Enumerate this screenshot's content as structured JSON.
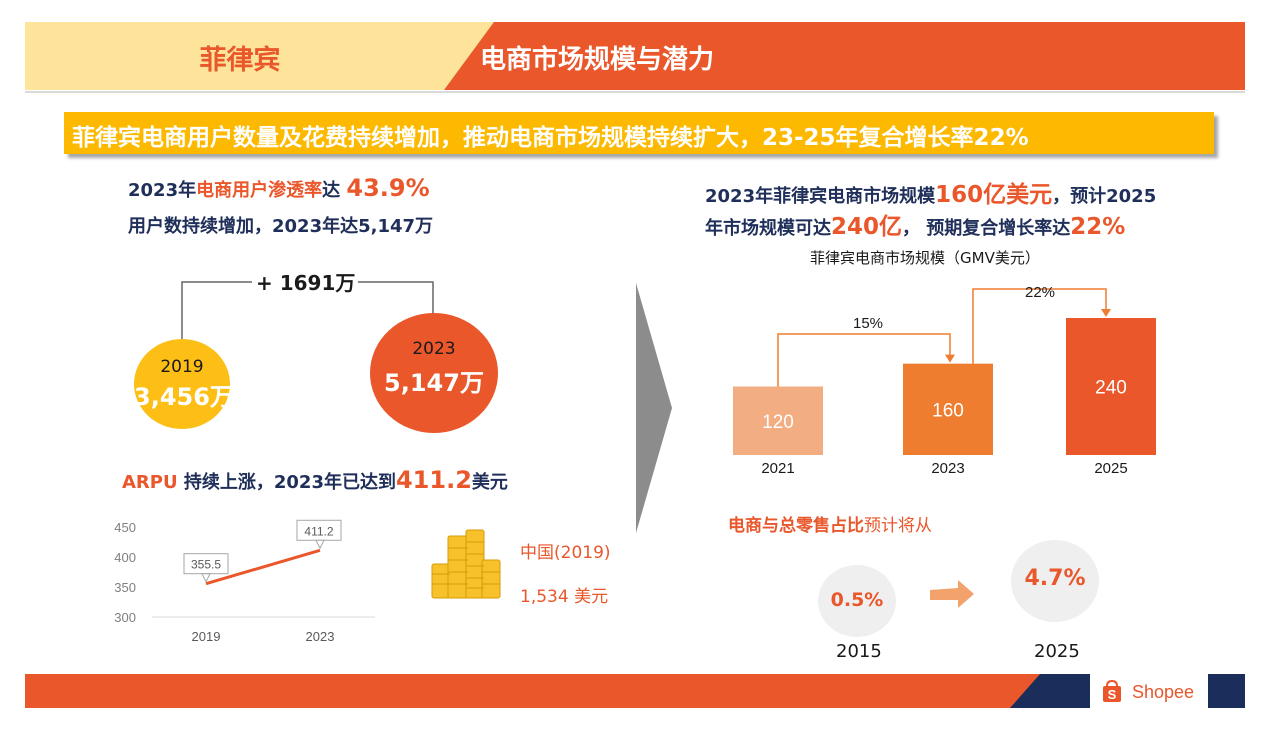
{
  "header": {
    "country": "菲律宾",
    "section_title": "电商市场规模与潜力"
  },
  "banner": {
    "text": "菲律宾电商用户数量及花费持续增加，推动电商市场规模持续扩大，23-25年复合增长率22%"
  },
  "users": {
    "line1_a": "2023年",
    "line1_b": "电商用户渗透率",
    "line1_c": "达 ",
    "line1_value": "43.9%",
    "line2": "用户数持续增加，2023年达5,147万",
    "increase_label": "+ 1691万",
    "circle_2019_year": "2019",
    "circle_2019_value": "3,456万",
    "circle_2023_year": "2023",
    "circle_2023_value": "5,147万"
  },
  "arpu": {
    "label_a": "ARPU",
    "label_b": " 持续上涨，2023年已达到",
    "label_value": "411.2",
    "label_unit": "美元",
    "compare_label": "中国(2019)",
    "compare_value": "1,534 美元"
  },
  "market": {
    "line1_a": "2023年菲律宾电商市场规模",
    "line1_value": "160亿美元",
    "line1_b": "，预计2025",
    "line2_a": "年市场规模可达",
    "line2_value": "240亿",
    "line2_b": "，  预期复合增长率达",
    "line2_value2": "22%",
    "chart_title": "菲律宾电商市场规模（GMV美元）"
  },
  "retail": {
    "label_a": "电商与总零售占比",
    "label_b": "预计将从",
    "from_value": "0.5%",
    "from_year": "2015",
    "to_value": "4.7%",
    "to_year": "2025"
  },
  "footer": {
    "brand": "Shopee"
  },
  "colors": {
    "accent": "#e9572b",
    "yellow": "#fcb900",
    "navy": "#1f2f5a"
  },
  "chart_data": [
    {
      "type": "line",
      "title": "",
      "x": [
        "2019",
        "2023"
      ],
      "series": [
        {
          "values": [
            355.5,
            411.2
          ]
        }
      ],
      "ylim": [
        300,
        450
      ],
      "yticks": [
        300,
        350,
        400,
        450
      ],
      "data_labels": [
        "355.5",
        "411.2"
      ]
    },
    {
      "type": "bar",
      "title": "菲律宾电商市场规模（GMV美元）",
      "categories": [
        "2021",
        "2023",
        "2025"
      ],
      "values": [
        120,
        160,
        240
      ],
      "bar_colors": [
        "#f3ad83",
        "#ef7d30",
        "#e9572b"
      ],
      "annotations": [
        "15%",
        "22%"
      ]
    }
  ]
}
